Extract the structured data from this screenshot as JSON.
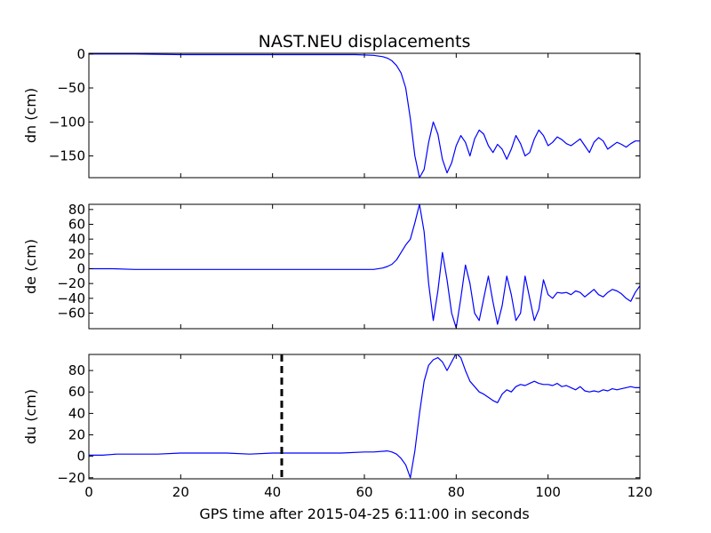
{
  "chart_data": {
    "type": "line",
    "title": "NAST.NEU displacements",
    "xlabel": "GPS time after 2015-04-25 6:11:00 in seconds",
    "xlim": [
      0,
      120
    ],
    "xticks": [
      0,
      20,
      40,
      60,
      80,
      100,
      120
    ],
    "marker_x": 42,
    "line_color": "#0000ff",
    "panels": [
      {
        "name": "dn",
        "ylabel": "dn (cm)",
        "ylim": [
          -182,
          1
        ],
        "yticks": [
          0,
          -50,
          -100,
          -150
        ],
        "yticklabels": [
          "0",
          "−50",
          "−100",
          "−150"
        ],
        "series": [
          {
            "x": [
              0,
              10,
              20,
              30,
              40,
              50,
              58,
              62,
              64,
              65,
              66,
              67,
              68,
              69,
              70,
              71,
              72,
              73,
              74,
              75,
              76,
              77,
              78,
              79,
              80,
              81,
              82,
              83,
              84,
              85,
              86,
              87,
              88,
              89,
              90,
              91,
              92,
              93,
              94,
              95,
              96,
              97,
              98,
              99,
              100,
              101,
              102,
              103,
              104,
              105,
              106,
              107,
              108,
              109,
              110,
              111,
              112,
              113,
              114,
              115,
              116,
              117,
              118,
              119,
              120
            ],
            "y": [
              0,
              0,
              -1,
              -1,
              -1,
              -1,
              -1,
              -2,
              -4,
              -6,
              -10,
              -17,
              -28,
              -50,
              -95,
              -150,
              -182,
              -170,
              -130,
              -100,
              -118,
              -155,
              -175,
              -160,
              -135,
              -120,
              -130,
              -150,
              -125,
              -112,
              -118,
              -135,
              -145,
              -133,
              -140,
              -155,
              -140,
              -120,
              -132,
              -150,
              -145,
              -125,
              -112,
              -120,
              -135,
              -130,
              -122,
              -126,
              -132,
              -135,
              -130,
              -125,
              -135,
              -145,
              -130,
              -123,
              -128,
              -140,
              -135,
              -130,
              -133,
              -137,
              -132,
              -128,
              -128
            ]
          }
        ]
      },
      {
        "name": "de",
        "ylabel": "de (cm)",
        "ylim": [
          -81,
          87
        ],
        "yticks": [
          80,
          60,
          40,
          20,
          0,
          -20,
          -40,
          -60
        ],
        "yticklabels": [
          "80",
          "60",
          "40",
          "20",
          "0",
          "−20",
          "−40",
          "−60"
        ],
        "series": [
          {
            "x": [
              0,
              5,
              10,
              20,
              30,
              40,
              50,
              58,
              62,
              64,
              65,
              66,
              67,
              68,
              69,
              70,
              71,
              72,
              73,
              74,
              75,
              76,
              77,
              78,
              79,
              80,
              81,
              82,
              83,
              84,
              85,
              86,
              87,
              88,
              89,
              90,
              91,
              92,
              93,
              94,
              95,
              96,
              97,
              98,
              99,
              100,
              101,
              102,
              103,
              104,
              105,
              106,
              107,
              108,
              109,
              110,
              111,
              112,
              113,
              114,
              115,
              116,
              117,
              118,
              119,
              120
            ],
            "y": [
              0,
              0,
              -1,
              -1,
              -1,
              -1,
              -1,
              -1,
              -1,
              1,
              3,
              6,
              12,
              22,
              32,
              40,
              62,
              87,
              50,
              -20,
              -70,
              -30,
              22,
              -15,
              -60,
              -80,
              -40,
              5,
              -20,
              -60,
              -70,
              -40,
              -10,
              -45,
              -75,
              -50,
              -10,
              -35,
              -70,
              -60,
              -10,
              -40,
              -70,
              -55,
              -15,
              -35,
              -40,
              -32,
              -33,
              -32,
              -35,
              -30,
              -32,
              -38,
              -33,
              -28,
              -35,
              -38,
              -32,
              -28,
              -30,
              -34,
              -40,
              -44,
              -32,
              -23
            ]
          }
        ]
      },
      {
        "name": "du",
        "ylabel": "du (cm)",
        "ylim": [
          -21,
          95
        ],
        "yticks": [
          80,
          60,
          40,
          20,
          0,
          -20
        ],
        "yticklabels": [
          "80",
          "60",
          "40",
          "20",
          "0",
          "−20"
        ],
        "series": [
          {
            "x": [
              0,
              3,
              6,
              10,
              15,
              20,
              25,
              30,
              35,
              40,
              45,
              50,
              55,
              60,
              62,
              65,
              66,
              67,
              68,
              69,
              70,
              71,
              72,
              73,
              74,
              75,
              76,
              77,
              78,
              79,
              80,
              81,
              82,
              83,
              84,
              85,
              86,
              87,
              88,
              89,
              90,
              91,
              92,
              93,
              94,
              95,
              96,
              97,
              98,
              99,
              100,
              101,
              102,
              103,
              104,
              105,
              106,
              107,
              108,
              109,
              110,
              111,
              112,
              113,
              114,
              115,
              116,
              117,
              118,
              119,
              120
            ],
            "y": [
              1,
              1,
              2,
              2,
              2,
              3,
              3,
              3,
              2,
              3,
              3,
              3,
              3,
              4,
              4,
              5,
              4,
              2,
              -2,
              -8,
              -20,
              5,
              40,
              70,
              85,
              90,
              92,
              88,
              80,
              88,
              96,
              92,
              80,
              70,
              65,
              60,
              58,
              55,
              52,
              50,
              58,
              62,
              60,
              65,
              67,
              66,
              68,
              70,
              68,
              67,
              67,
              66,
              68,
              65,
              66,
              64,
              62,
              65,
              61,
              60,
              61,
              60,
              62,
              61,
              63,
              62,
              63,
              64,
              65,
              64,
              64
            ]
          }
        ]
      }
    ]
  }
}
